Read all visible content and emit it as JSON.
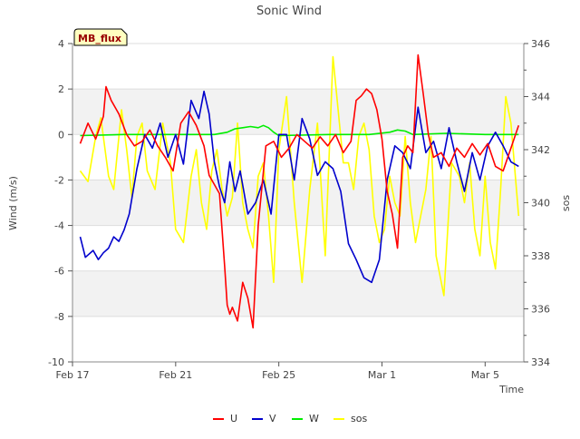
{
  "chart_data": {
    "type": "line",
    "title": "Sonic Wind",
    "xlabel": "Time",
    "ylabel": "Wind (m/s)",
    "y2label": "sos",
    "badge": "MB_flux",
    "ylim": [
      -10,
      4
    ],
    "y2lim": [
      334,
      346
    ],
    "xlim": [
      0,
      17.5
    ],
    "yticks": [
      "-10",
      "-8",
      "-6",
      "-4",
      "-2",
      "0",
      "2",
      "4"
    ],
    "y2ticks": [
      "334",
      "336",
      "338",
      "340",
      "342",
      "344",
      "346"
    ],
    "xticks": [
      {
        "label": "Feb 17",
        "x": 0
      },
      {
        "label": "Feb 21",
        "x": 4
      },
      {
        "label": "Feb 25",
        "x": 8
      },
      {
        "label": "Mar 1",
        "x": 12
      },
      {
        "label": "Mar 5",
        "x": 16
      }
    ],
    "bands": [
      [
        -8,
        -6
      ],
      [
        -4,
        -2
      ],
      [
        0,
        2
      ]
    ],
    "legend": [
      {
        "name": "U",
        "color": "#ff0000"
      },
      {
        "name": "V",
        "color": "#0000cc"
      },
      {
        "name": "W",
        "color": "#00ee00"
      },
      {
        "name": "sos",
        "color": "#ffff00"
      }
    ],
    "series": [
      {
        "name": "U",
        "axis": "left",
        "x": [
          0.3,
          0.6,
          0.9,
          1.2,
          1.3,
          1.5,
          1.8,
          2.1,
          2.4,
          2.7,
          3.0,
          3.3,
          3.6,
          3.9,
          4.2,
          4.5,
          4.8,
          5.1,
          5.3,
          5.5,
          5.7,
          5.9,
          6.0,
          6.1,
          6.2,
          6.4,
          6.6,
          6.8,
          7.0,
          7.2,
          7.5,
          7.8,
          8.1,
          8.4,
          8.7,
          9.0,
          9.3,
          9.6,
          9.9,
          10.2,
          10.5,
          10.8,
          11.0,
          11.2,
          11.4,
          11.6,
          11.8,
          12.0,
          12.2,
          12.4,
          12.6,
          12.8,
          13.0,
          13.2,
          13.4,
          13.6,
          13.8,
          14.0,
          14.3,
          14.6,
          14.9,
          15.2,
          15.5,
          15.8,
          16.1,
          16.4,
          16.7,
          17.0,
          17.3
        ],
        "values": [
          -0.4,
          0.5,
          -0.2,
          0.8,
          2.1,
          1.5,
          0.9,
          0.0,
          -0.5,
          -0.3,
          0.2,
          -0.5,
          -1.0,
          -1.6,
          0.5,
          1.0,
          0.4,
          -0.5,
          -1.8,
          -2.2,
          -2.6,
          -5.8,
          -7.5,
          -7.9,
          -7.6,
          -8.2,
          -6.5,
          -7.2,
          -8.5,
          -4.0,
          -0.5,
          -0.3,
          -1.0,
          -0.6,
          0.0,
          -0.3,
          -0.6,
          -0.1,
          -0.5,
          0.0,
          -0.8,
          -0.3,
          1.5,
          1.7,
          2.0,
          1.8,
          1.1,
          -0.2,
          -2.5,
          -3.5,
          -5.0,
          -1.0,
          -0.5,
          -0.8,
          3.5,
          1.8,
          0.0,
          -1.0,
          -0.8,
          -1.4,
          -0.6,
          -1.0,
          -0.4,
          -0.9,
          -0.4,
          -1.4,
          -1.6,
          -0.6,
          0.4
        ]
      },
      {
        "name": "V",
        "axis": "left",
        "x": [
          0.3,
          0.5,
          0.8,
          1.0,
          1.2,
          1.4,
          1.6,
          1.8,
          2.0,
          2.2,
          2.5,
          2.8,
          3.1,
          3.4,
          3.7,
          4.0,
          4.3,
          4.6,
          4.9,
          5.1,
          5.3,
          5.5,
          5.7,
          5.9,
          6.1,
          6.3,
          6.5,
          6.8,
          7.1,
          7.4,
          7.7,
          8.0,
          8.3,
          8.6,
          8.9,
          9.2,
          9.5,
          9.8,
          10.1,
          10.4,
          10.7,
          11.0,
          11.3,
          11.6,
          11.9,
          12.2,
          12.5,
          12.8,
          13.1,
          13.4,
          13.7,
          14.0,
          14.3,
          14.6,
          14.9,
          15.2,
          15.5,
          15.8,
          16.1,
          16.4,
          16.7,
          17.0,
          17.3
        ],
        "values": [
          -4.5,
          -5.4,
          -5.1,
          -5.5,
          -5.2,
          -5.0,
          -4.5,
          -4.7,
          -4.2,
          -3.5,
          -1.5,
          0.0,
          -0.6,
          0.5,
          -1.0,
          0.0,
          -1.3,
          1.5,
          0.7,
          1.9,
          0.9,
          -1.2,
          -2.3,
          -3.0,
          -1.2,
          -2.5,
          -1.6,
          -3.5,
          -3.0,
          -2.0,
          -3.5,
          0.0,
          0.0,
          -2.0,
          0.7,
          -0.2,
          -1.8,
          -1.2,
          -1.5,
          -2.5,
          -4.8,
          -5.5,
          -6.3,
          -6.5,
          -5.5,
          -2.0,
          -0.5,
          -0.8,
          -1.5,
          1.2,
          -0.8,
          -0.3,
          -1.5,
          0.3,
          -1.2,
          -2.5,
          -0.8,
          -2.0,
          -0.5,
          0.1,
          -0.5,
          -1.2,
          -1.4
        ]
      },
      {
        "name": "W",
        "axis": "left",
        "x": [
          0.3,
          2.0,
          4.0,
          5.5,
          6.0,
          6.3,
          6.6,
          6.9,
          7.2,
          7.4,
          7.6,
          7.8,
          8.0,
          10.0,
          11.5,
          12.3,
          12.6,
          12.9,
          13.2,
          14.5,
          16.0,
          17.3
        ],
        "values": [
          -0.05,
          0.0,
          0.0,
          0.0,
          0.1,
          0.25,
          0.3,
          0.35,
          0.3,
          0.4,
          0.3,
          0.1,
          -0.05,
          0.0,
          0.0,
          0.1,
          0.2,
          0.15,
          0.0,
          0.05,
          0.0,
          0.0
        ]
      },
      {
        "name": "sos",
        "axis": "right",
        "x": [
          0.3,
          0.6,
          0.9,
          1.1,
          1.4,
          1.6,
          1.9,
          2.1,
          2.3,
          2.5,
          2.7,
          2.9,
          3.2,
          3.5,
          3.8,
          4.0,
          4.3,
          4.6,
          4.8,
          5.0,
          5.2,
          5.4,
          5.6,
          5.8,
          6.0,
          6.2,
          6.4,
          6.6,
          6.8,
          7.0,
          7.2,
          7.4,
          7.6,
          7.8,
          8.0,
          8.3,
          8.6,
          8.9,
          9.2,
          9.5,
          9.8,
          10.1,
          10.3,
          10.5,
          10.7,
          10.9,
          11.1,
          11.3,
          11.5,
          11.7,
          11.9,
          12.1,
          12.3,
          12.5,
          12.7,
          12.9,
          13.1,
          13.3,
          13.5,
          13.7,
          13.9,
          14.1,
          14.4,
          14.7,
          15.0,
          15.2,
          15.4,
          15.6,
          15.8,
          16.0,
          16.2,
          16.4,
          16.6,
          16.8,
          17.0,
          17.3
        ],
        "values": [
          341.2,
          340.8,
          342.5,
          343.2,
          341.0,
          340.5,
          343.5,
          342.0,
          340.2,
          342.5,
          343.0,
          341.2,
          340.5,
          343.0,
          341.5,
          339.0,
          338.5,
          341.0,
          342.0,
          340.0,
          339.0,
          341.2,
          342.0,
          340.5,
          339.5,
          340.2,
          343.0,
          340.0,
          339.0,
          338.3,
          341.0,
          341.5,
          339.5,
          337.0,
          342.0,
          344.0,
          340.0,
          337.0,
          340.5,
          343.0,
          338.0,
          345.5,
          343.5,
          341.5,
          341.5,
          340.5,
          342.5,
          343.0,
          342.0,
          339.5,
          338.5,
          339.0,
          341.0,
          340.0,
          339.5,
          342.5,
          340.0,
          338.5,
          339.5,
          340.5,
          342.5,
          338.0,
          336.5,
          341.5,
          341.0,
          340.0,
          341.5,
          339.0,
          338.0,
          341.0,
          338.5,
          337.5,
          340.5,
          344.0,
          343.0,
          339.5
        ]
      }
    ]
  }
}
